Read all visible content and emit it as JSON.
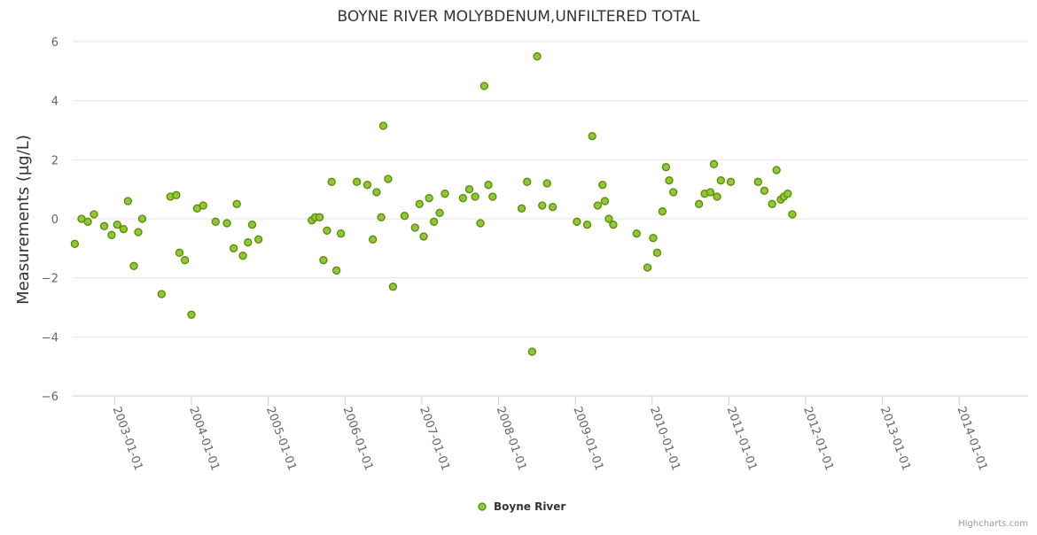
{
  "chart_data": {
    "type": "scatter",
    "title": "BOYNE RIVER MOLYBDENUM,UNFILTERED TOTAL",
    "xlabel": "",
    "ylabel": "Measurements (µg/L)",
    "ylim": [
      -6,
      6
    ],
    "yticks": [
      "6",
      "4",
      "2",
      "0",
      "−2",
      "−4",
      "−6"
    ],
    "xlim": [
      "2002-06-15",
      "2014-11-25"
    ],
    "xticks": [
      "2003-01-01",
      "2004-01-01",
      "2005-01-01",
      "2006-01-01",
      "2007-01-01",
      "2008-01-01",
      "2009-01-01",
      "2010-01-01",
      "2011-01-01",
      "2012-01-01",
      "2013-01-01",
      "2014-01-01"
    ],
    "grid": true,
    "legend_position": "bottom-center",
    "series": [
      {
        "name": "Boyne River",
        "color": "#90c73a",
        "stroke": "#5a8a00",
        "points": [
          [
            "2002-06-25",
            -0.85
          ],
          [
            "2002-07-27",
            0.0
          ],
          [
            "2002-08-26",
            -0.1
          ],
          [
            "2002-09-24",
            0.15
          ],
          [
            "2002-11-12",
            -0.25
          ],
          [
            "2002-12-17",
            -0.55
          ],
          [
            "2003-01-13",
            -0.2
          ],
          [
            "2003-02-12",
            -0.35
          ],
          [
            "2003-03-05",
            0.6
          ],
          [
            "2003-04-02",
            -1.6
          ],
          [
            "2003-04-23",
            -0.45
          ],
          [
            "2003-05-12",
            0.0
          ],
          [
            "2003-08-12",
            -2.55
          ],
          [
            "2003-09-23",
            0.75
          ],
          [
            "2003-10-21",
            0.8
          ],
          [
            "2003-11-05",
            -1.15
          ],
          [
            "2003-12-01",
            -1.4
          ],
          [
            "2004-01-01",
            -3.25
          ],
          [
            "2004-01-28",
            0.35
          ],
          [
            "2004-02-26",
            0.45
          ],
          [
            "2004-04-25",
            -0.1
          ],
          [
            "2004-06-18",
            -0.15
          ],
          [
            "2004-07-20",
            -1.0
          ],
          [
            "2004-08-04",
            0.5
          ],
          [
            "2004-09-02",
            -1.25
          ],
          [
            "2004-09-26",
            -0.8
          ],
          [
            "2004-10-16",
            -0.2
          ],
          [
            "2004-11-15",
            -0.7
          ],
          [
            "2005-07-27",
            -0.05
          ],
          [
            "2005-08-12",
            0.05
          ],
          [
            "2005-09-02",
            0.05
          ],
          [
            "2005-09-20",
            -1.4
          ],
          [
            "2005-10-07",
            -0.4
          ],
          [
            "2005-10-29",
            1.25
          ],
          [
            "2005-11-21",
            -1.75
          ],
          [
            "2005-12-12",
            -0.5
          ],
          [
            "2006-02-26",
            1.25
          ],
          [
            "2006-04-17",
            1.15
          ],
          [
            "2006-05-13",
            -0.7
          ],
          [
            "2006-05-31",
            0.9
          ],
          [
            "2006-06-22",
            0.05
          ],
          [
            "2006-07-02",
            3.15
          ],
          [
            "2006-07-25",
            1.35
          ],
          [
            "2006-08-17",
            -2.3
          ],
          [
            "2006-10-11",
            0.1
          ],
          [
            "2006-11-30",
            -0.3
          ],
          [
            "2006-12-21",
            0.5
          ],
          [
            "2007-01-10",
            -0.6
          ],
          [
            "2007-02-05",
            0.7
          ],
          [
            "2007-02-28",
            -0.1
          ],
          [
            "2007-03-27",
            0.2
          ],
          [
            "2007-04-21",
            0.85
          ],
          [
            "2007-07-16",
            0.7
          ],
          [
            "2007-08-15",
            1.0
          ],
          [
            "2007-09-12",
            0.75
          ],
          [
            "2007-10-07",
            -0.15
          ],
          [
            "2007-10-25",
            4.5
          ],
          [
            "2007-11-14",
            1.15
          ],
          [
            "2007-12-04",
            0.75
          ],
          [
            "2008-04-20",
            0.35
          ],
          [
            "2008-05-16",
            1.25
          ],
          [
            "2008-06-09",
            -4.5
          ],
          [
            "2008-07-03",
            5.5
          ],
          [
            "2008-07-27",
            0.45
          ],
          [
            "2008-08-19",
            1.2
          ],
          [
            "2008-09-15",
            0.4
          ],
          [
            "2009-01-08",
            -0.1
          ],
          [
            "2009-02-26",
            -0.2
          ],
          [
            "2009-03-22",
            2.8
          ],
          [
            "2009-04-17",
            0.45
          ],
          [
            "2009-05-10",
            1.15
          ],
          [
            "2009-05-21",
            0.6
          ],
          [
            "2009-06-09",
            0.0
          ],
          [
            "2009-06-30",
            -0.2
          ],
          [
            "2009-10-19",
            -0.5
          ],
          [
            "2009-12-10",
            -1.65
          ],
          [
            "2010-01-06",
            -0.65
          ],
          [
            "2010-01-25",
            -1.15
          ],
          [
            "2010-02-19",
            0.25
          ],
          [
            "2010-03-08",
            1.75
          ],
          [
            "2010-03-23",
            1.3
          ],
          [
            "2010-04-12",
            0.9
          ],
          [
            "2010-08-12",
            0.5
          ],
          [
            "2010-09-08",
            0.85
          ],
          [
            "2010-10-05",
            0.9
          ],
          [
            "2010-10-22",
            1.85
          ],
          [
            "2010-11-06",
            0.75
          ],
          [
            "2010-11-24",
            1.3
          ],
          [
            "2011-01-10",
            1.25
          ],
          [
            "2011-05-20",
            1.25
          ],
          [
            "2011-06-19",
            0.95
          ],
          [
            "2011-07-26",
            0.5
          ],
          [
            "2011-08-16",
            1.65
          ],
          [
            "2011-09-05",
            0.65
          ],
          [
            "2011-09-20",
            0.75
          ],
          [
            "2011-10-08",
            0.85
          ],
          [
            "2011-10-30",
            0.15
          ]
        ]
      }
    ]
  },
  "credits": "Highcharts.com"
}
